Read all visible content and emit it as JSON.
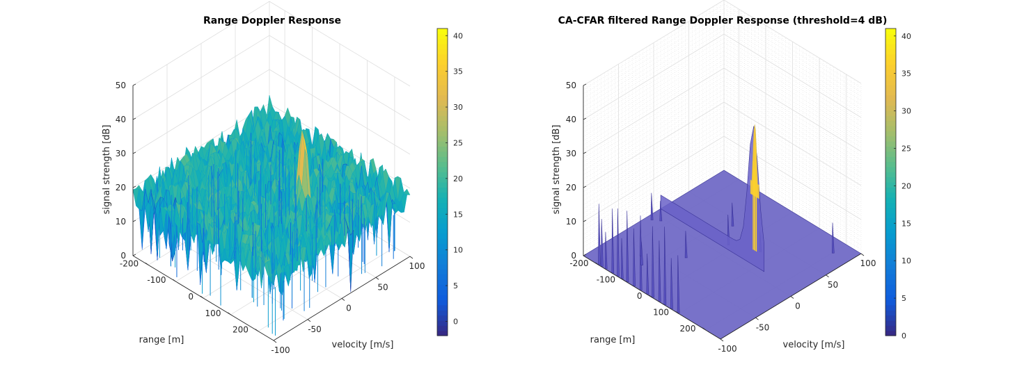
{
  "chart_data": [
    {
      "type": "surface3d",
      "title": "Range Doppler Response",
      "xlabel": "velocity [m/s]",
      "ylabel": "range [m]",
      "zlabel": "signal strength [dB]",
      "xticks": [
        "-100",
        "-50",
        "0",
        "50",
        "100"
      ],
      "yticks": [
        "-200",
        "-100",
        "0",
        "100",
        "200"
      ],
      "zticks": [
        "0",
        "10",
        "20",
        "30",
        "40",
        "50"
      ],
      "xlim": [
        -100,
        100
      ],
      "ylim": [
        -256,
        256
      ],
      "zlim": [
        0,
        50
      ],
      "noise_floor_db": 18,
      "noise_min_db": -2,
      "peak": {
        "velocity": 10,
        "range": 90,
        "db": 41
      },
      "colorbar": {
        "min": -2,
        "max": 41,
        "ticks": [
          "0",
          "5",
          "10",
          "15",
          "20",
          "25",
          "30",
          "35",
          "40"
        ]
      },
      "grid": true
    },
    {
      "type": "surface3d",
      "title": "CA-CFAR filtered Range Doppler Response (threshold=4 dB)",
      "xlabel": "velocity [m/s]",
      "ylabel": "range [m]",
      "zlabel": "signal strength [dB]",
      "xticks": [
        "-100",
        "-50",
        "0",
        "50",
        "100"
      ],
      "yticks": [
        "-200",
        "-100",
        "0",
        "100",
        "200"
      ],
      "zticks": [
        "0",
        "10",
        "20",
        "30",
        "40",
        "50"
      ],
      "xlim": [
        -100,
        100
      ],
      "ylim": [
        -256,
        256
      ],
      "zlim": [
        0,
        50
      ],
      "threshold_db": 4,
      "peak": {
        "velocity": 10,
        "range": 90,
        "db": 41
      },
      "colorbar": {
        "min": 0,
        "max": 41,
        "ticks": [
          "0",
          "5",
          "10",
          "15",
          "20",
          "25",
          "30",
          "35",
          "40"
        ]
      },
      "grid": true
    }
  ]
}
